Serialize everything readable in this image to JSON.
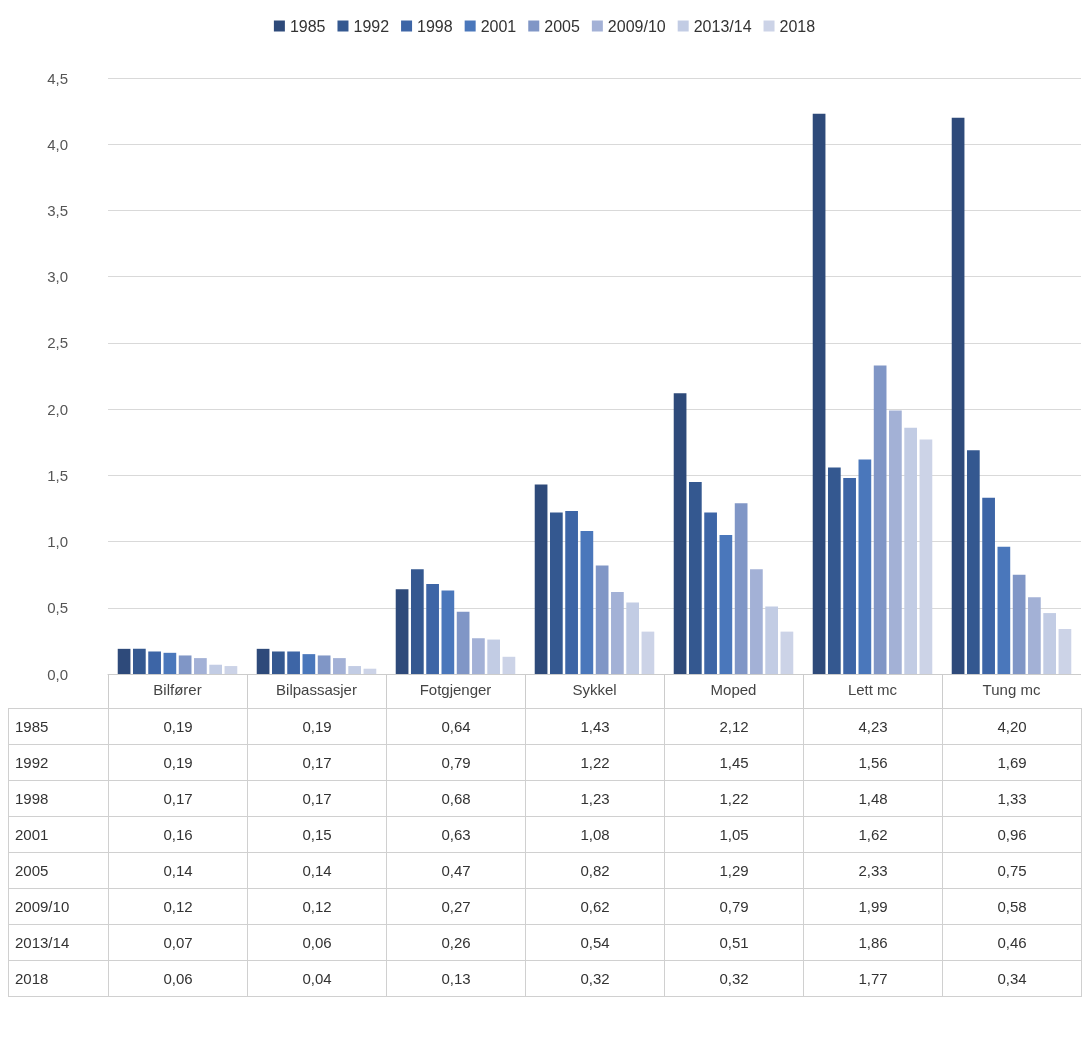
{
  "chart_data": {
    "type": "bar",
    "categories": [
      "Bilfører",
      "Bilpassasjer",
      "Fotgjenger",
      "Sykkel",
      "Moped",
      "Lett mc",
      "Tung mc"
    ],
    "series": [
      {
        "name": "1985",
        "color": "#2e4a7a",
        "values": [
          0.19,
          0.19,
          0.64,
          1.43,
          2.12,
          4.23,
          4.2
        ],
        "value_labels": [
          "0,19",
          "0,19",
          "0,64",
          "1,43",
          "2,12",
          "4,23",
          "4,20"
        ]
      },
      {
        "name": "1992",
        "color": "#345890",
        "values": [
          0.19,
          0.17,
          0.79,
          1.22,
          1.45,
          1.56,
          1.69
        ],
        "value_labels": [
          "0,19",
          "0,17",
          "0,79",
          "1,22",
          "1,45",
          "1,56",
          "1,69"
        ]
      },
      {
        "name": "1998",
        "color": "#3d65a6",
        "values": [
          0.17,
          0.17,
          0.68,
          1.23,
          1.22,
          1.48,
          1.33
        ],
        "value_labels": [
          "0,17",
          "0,17",
          "0,68",
          "1,23",
          "1,22",
          "1,48",
          "1,33"
        ]
      },
      {
        "name": "2001",
        "color": "#4a77bb",
        "values": [
          0.16,
          0.15,
          0.63,
          1.08,
          1.05,
          1.62,
          0.96
        ],
        "value_labels": [
          "0,16",
          "0,15",
          "0,63",
          "1,08",
          "1,05",
          "1,62",
          "0,96"
        ]
      },
      {
        "name": "2005",
        "color": "#8096c6",
        "values": [
          0.14,
          0.14,
          0.47,
          0.82,
          1.29,
          2.33,
          0.75
        ],
        "value_labels": [
          "0,14",
          "0,14",
          "0,47",
          "0,82",
          "1,29",
          "2,33",
          "0,75"
        ]
      },
      {
        "name": "2009/10",
        "color": "#a3b1d6",
        "values": [
          0.12,
          0.12,
          0.27,
          0.62,
          0.79,
          1.99,
          0.58
        ],
        "value_labels": [
          "0,12",
          "0,12",
          "0,27",
          "0,62",
          "0,79",
          "1,99",
          "0,58"
        ]
      },
      {
        "name": "2013/14",
        "color": "#c2cce4",
        "values": [
          0.07,
          0.06,
          0.26,
          0.54,
          0.51,
          1.86,
          0.46
        ],
        "value_labels": [
          "0,07",
          "0,06",
          "0,26",
          "0,54",
          "0,51",
          "1,86",
          "0,46"
        ]
      },
      {
        "name": "2018",
        "color": "#ccd3e7",
        "values": [
          0.06,
          0.04,
          0.13,
          0.32,
          0.32,
          1.77,
          0.34
        ],
        "value_labels": [
          "0,06",
          "0,04",
          "0,13",
          "0,32",
          "0,32",
          "1,77",
          "0,34"
        ]
      }
    ],
    "ylim": [
      0,
      4.5
    ],
    "yticks": [
      {
        "value": 0,
        "label": "0,0"
      },
      {
        "value": 0.5,
        "label": "0,5"
      },
      {
        "value": 1,
        "label": "1,0"
      },
      {
        "value": 1.5,
        "label": "1,5"
      },
      {
        "value": 2,
        "label": "2,0"
      },
      {
        "value": 2.5,
        "label": "2,5"
      },
      {
        "value": 3,
        "label": "3,0"
      },
      {
        "value": 3.5,
        "label": "3,5"
      },
      {
        "value": 4,
        "label": "4,0"
      },
      {
        "value": 4.5,
        "label": "4,5"
      }
    ],
    "grid": "y",
    "legend": "top"
  }
}
